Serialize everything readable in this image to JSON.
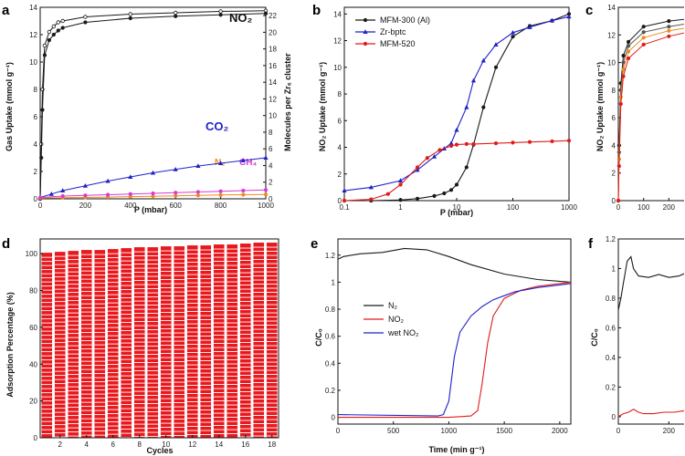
{
  "colors": {
    "black": "#1a1a1a",
    "blue": "#1f22c8",
    "red": "#e01b1b",
    "orange": "#f08a1a",
    "magenta": "#d63ad6",
    "gray": "#555555",
    "bar": "#e8191e"
  },
  "panels": {
    "a": {
      "label": "a",
      "xlabel": "P (mbar)",
      "ylabel": "Gas Uptake (mmol g⁻¹)",
      "ylabel2": "Molecules per Zr₆ cluster",
      "ann_no2": "NO₂",
      "ann_co2": "CO₂",
      "ann_n2": "N₂",
      "ann_ch4": "CH₄"
    },
    "b": {
      "label": "b",
      "xlabel": "P (mbar)",
      "ylabel": "NO₂ Uptake (mmol g⁻¹)"
    },
    "c": {
      "label": "c",
      "ylabel": "NO₂ Uptake (mmol g⁻¹)"
    },
    "d": {
      "label": "d",
      "xlabel": "Cycles",
      "ylabel": "Adsorption Percentage (%)"
    },
    "e": {
      "label": "e",
      "xlabel": "Time (min g⁻¹)",
      "ylabel": "C/C₀"
    },
    "f": {
      "label": "f",
      "ylabel": "C/C₀"
    }
  },
  "chart_data": [
    {
      "panel": "a",
      "type": "line",
      "xlim": [
        0,
        1000
      ],
      "ylim": [
        0,
        14
      ],
      "ylim_right": [
        0,
        23
      ],
      "xticks": [
        0,
        200,
        400,
        600,
        800,
        1000
      ],
      "yticks": [
        0,
        2,
        4,
        6,
        8,
        10,
        12,
        14
      ],
      "yticks_right": [
        0,
        2,
        4,
        6,
        8,
        10,
        12,
        14,
        16,
        18,
        20,
        22
      ],
      "series": [
        {
          "name": "NO₂",
          "color": "black",
          "x": [
            0,
            5,
            10,
            20,
            40,
            60,
            80,
            100,
            200,
            400,
            600,
            800,
            1000
          ],
          "y": [
            0,
            4,
            8,
            11.2,
            12.2,
            12.6,
            12.9,
            13.0,
            13.3,
            13.5,
            13.6,
            13.7,
            13.75
          ]
        },
        {
          "name": "NO₂",
          "color": "black",
          "x": [
            0,
            5,
            10,
            20,
            40,
            60,
            80,
            100,
            200,
            400,
            600,
            800,
            1000
          ],
          "y": [
            0,
            3,
            6.5,
            10.5,
            11.6,
            12.0,
            12.3,
            12.5,
            12.9,
            13.2,
            13.35,
            13.45,
            13.55
          ]
        },
        {
          "name": "CO₂",
          "color": "blue",
          "x": [
            0,
            50,
            100,
            200,
            300,
            400,
            500,
            600,
            700,
            800,
            900,
            1000
          ],
          "y": [
            0.1,
            0.35,
            0.6,
            0.95,
            1.3,
            1.6,
            1.9,
            2.15,
            2.4,
            2.6,
            2.8,
            3.0
          ]
        },
        {
          "name": "N₂",
          "color": "orange",
          "x": [
            0,
            100,
            200,
            300,
            400,
            500,
            600,
            700,
            800,
            900,
            1000
          ],
          "y": [
            0.05,
            0.08,
            0.1,
            0.13,
            0.16,
            0.19,
            0.22,
            0.25,
            0.28,
            0.3,
            0.32
          ]
        },
        {
          "name": "CH₄",
          "color": "magenta",
          "x": [
            0,
            100,
            200,
            300,
            400,
            500,
            600,
            700,
            800,
            900,
            1000
          ],
          "y": [
            0.1,
            0.2,
            0.25,
            0.3,
            0.35,
            0.4,
            0.45,
            0.5,
            0.55,
            0.6,
            0.65
          ]
        }
      ]
    },
    {
      "panel": "b",
      "type": "line",
      "xscale": "log",
      "xlim": [
        0.1,
        1000
      ],
      "ylim": [
        0,
        14.5
      ],
      "xticks": [
        0.1,
        1,
        10,
        100,
        1000
      ],
      "xticklabels": [
        "0.1",
        "1",
        "10",
        "100",
        "1000"
      ],
      "yticks": [
        0,
        2,
        4,
        6,
        8,
        10,
        12,
        14
      ],
      "series": [
        {
          "name": "MFM-300 (Al)",
          "color": "black",
          "x": [
            0.1,
            0.3,
            1,
            2,
            4,
            6,
            8,
            10,
            15,
            20,
            30,
            50,
            100,
            200,
            500,
            1000
          ],
          "y": [
            0,
            0,
            0.05,
            0.15,
            0.35,
            0.55,
            0.8,
            1.2,
            2.5,
            4.2,
            7.0,
            10.0,
            12.3,
            13.1,
            13.5,
            14.0
          ]
        },
        {
          "name": "Zr-bptc",
          "color": "blue",
          "x": [
            0.1,
            0.3,
            1,
            2,
            4,
            6,
            8,
            10,
            15,
            20,
            30,
            50,
            100,
            200,
            500,
            1000
          ],
          "y": [
            0.75,
            1.0,
            1.5,
            2.3,
            3.3,
            3.9,
            4.3,
            5.3,
            7.0,
            9.0,
            10.5,
            11.7,
            12.6,
            13.0,
            13.5,
            13.8
          ]
        },
        {
          "name": "MFM-520",
          "color": "red",
          "x": [
            0.1,
            0.3,
            0.6,
            1,
            2,
            3,
            5,
            8,
            10,
            15,
            20,
            50,
            100,
            200,
            500,
            1000
          ],
          "y": [
            0,
            0.1,
            0.5,
            1.2,
            2.5,
            3.2,
            3.8,
            4.1,
            4.2,
            4.25,
            4.25,
            4.3,
            4.35,
            4.4,
            4.45,
            4.5
          ]
        }
      ]
    },
    {
      "panel": "c",
      "type": "line",
      "xlim": [
        0,
        300
      ],
      "ylim": [
        0,
        14
      ],
      "yticks": [
        0,
        2,
        4,
        6,
        8,
        10,
        12,
        14
      ],
      "xticks": [
        0,
        100,
        200
      ],
      "series": [
        {
          "color": "black",
          "x": [
            0,
            3,
            10,
            20,
            40,
            100,
            200,
            300
          ],
          "y": [
            0,
            4,
            8.5,
            10.5,
            11.5,
            12.6,
            13.0,
            13.2
          ]
        },
        {
          "color": "gray",
          "x": [
            0,
            3,
            10,
            20,
            40,
            100,
            200,
            300
          ],
          "y": [
            0,
            3.5,
            8,
            10,
            11.2,
            12.2,
            12.6,
            12.9
          ]
        },
        {
          "color": "orange",
          "x": [
            0,
            3,
            10,
            20,
            40,
            100,
            200,
            300
          ],
          "y": [
            0,
            3,
            7.5,
            9.5,
            10.8,
            11.8,
            12.3,
            12.6
          ]
        },
        {
          "color": "red",
          "x": [
            0,
            3,
            10,
            20,
            40,
            100,
            200,
            300
          ],
          "y": [
            0,
            2.5,
            7,
            9,
            10.3,
            11.3,
            11.9,
            12.3
          ]
        }
      ]
    },
    {
      "panel": "d",
      "type": "bar",
      "ylim": [
        0,
        108
      ],
      "yticks": [
        0,
        20,
        40,
        60,
        80,
        100
      ],
      "categories": [
        1,
        2,
        3,
        4,
        5,
        6,
        7,
        8,
        9,
        10,
        11,
        12,
        13,
        14,
        15,
        16,
        17,
        18
      ],
      "xticks": [
        2,
        4,
        6,
        8,
        10,
        12,
        14,
        16,
        18
      ],
      "values": [
        100.5,
        101,
        101.5,
        102,
        102,
        102.5,
        103,
        103.5,
        103.5,
        104,
        104,
        104.5,
        104.5,
        105,
        105,
        105.5,
        106,
        106
      ]
    },
    {
      "panel": "e",
      "type": "line",
      "xlim": [
        0,
        2100
      ],
      "ylim": [
        -0.05,
        1.32
      ],
      "xticks": [
        0,
        500,
        1000,
        1500,
        2000
      ],
      "yticks": [
        0.0,
        0.2,
        0.4,
        0.6,
        0.8,
        1.0,
        1.2
      ],
      "series": [
        {
          "name": "N₂",
          "color": "black",
          "x": [
            0,
            50,
            200,
            400,
            600,
            800,
            1000,
            1200,
            1500,
            1800,
            2100
          ],
          "y": [
            1.17,
            1.19,
            1.21,
            1.22,
            1.25,
            1.24,
            1.19,
            1.13,
            1.06,
            1.02,
            1.0
          ]
        },
        {
          "name": "NO₂",
          "color": "red",
          "x": [
            0,
            1000,
            1200,
            1260,
            1300,
            1350,
            1400,
            1500,
            1650,
            1800,
            2000,
            2100
          ],
          "y": [
            0,
            0,
            0.01,
            0.05,
            0.25,
            0.55,
            0.75,
            0.88,
            0.94,
            0.97,
            0.99,
            1.0
          ]
        },
        {
          "name": "wet NO₂",
          "color": "blue",
          "x": [
            0,
            900,
            950,
            1000,
            1050,
            1100,
            1200,
            1300,
            1400,
            1500,
            1600,
            1800,
            2000,
            2100
          ],
          "y": [
            0.02,
            0.01,
            0.02,
            0.12,
            0.45,
            0.63,
            0.75,
            0.82,
            0.87,
            0.9,
            0.93,
            0.96,
            0.98,
            0.99
          ]
        }
      ]
    },
    {
      "panel": "f",
      "type": "line",
      "xlim": [
        0,
        300
      ],
      "ylim": [
        -0.05,
        1.2
      ],
      "xticks": [
        0,
        200
      ],
      "yticks": [
        0.0,
        0.2,
        0.4,
        0.6,
        0.8,
        1.0,
        1.2
      ],
      "series": [
        {
          "color": "black",
          "x": [
            0,
            10,
            20,
            35,
            50,
            60,
            80,
            120,
            160,
            200,
            240,
            280
          ],
          "y": [
            0.72,
            0.8,
            0.9,
            1.05,
            1.08,
            1.0,
            0.95,
            0.94,
            0.96,
            0.94,
            0.95,
            0.98
          ]
        },
        {
          "color": "red",
          "x": [
            0,
            20,
            40,
            60,
            80,
            100,
            140,
            180,
            220,
            260,
            300
          ],
          "y": [
            0.0,
            0.02,
            0.03,
            0.05,
            0.03,
            0.02,
            0.02,
            0.03,
            0.03,
            0.04,
            0.04
          ]
        }
      ]
    }
  ]
}
